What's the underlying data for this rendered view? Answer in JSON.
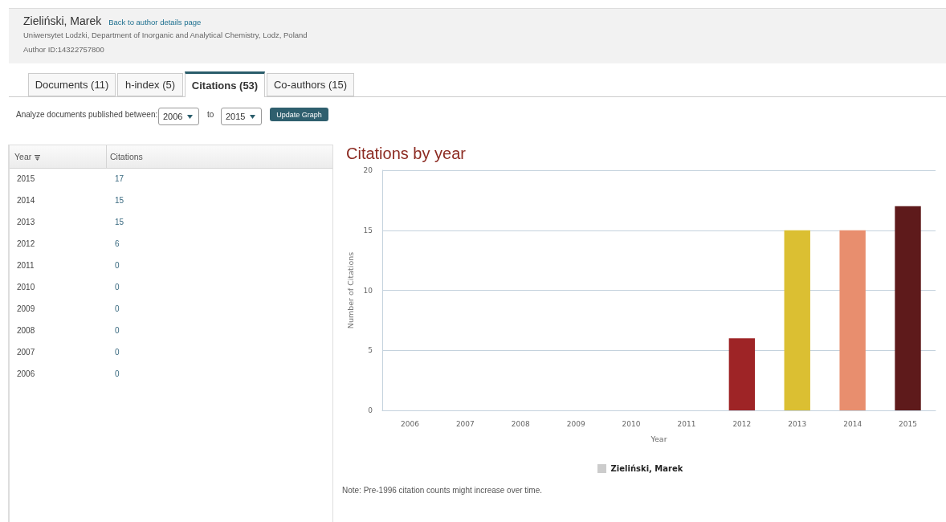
{
  "chart_data": [
    {
      "type": "heatmap",
      "ylabel": "Year",
      "categories": [
        "Citations"
      ],
      "y_categories": [
        "2015",
        "2014",
        "2013",
        "2012",
        "2011",
        "2010",
        "2009",
        "2008",
        "2007",
        "2006"
      ],
      "cells": [
        [
          17
        ],
        [
          15
        ],
        [
          15
        ],
        [
          6
        ],
        [
          0
        ],
        [
          0
        ],
        [
          0
        ],
        [
          0
        ],
        [
          0
        ],
        [
          0
        ]
      ],
      "data_labels": true
    },
    {
      "type": "bar",
      "title": "Citations by year",
      "xlabel": "Year",
      "ylabel": "Number of Citations",
      "categories": [
        "2006",
        "2007",
        "2008",
        "2009",
        "2010",
        "2011",
        "2012",
        "2013",
        "2014",
        "2015"
      ],
      "series": [
        {
          "name": "Zieliński, Marek",
          "values": [
            0,
            0,
            0,
            0,
            0,
            0,
            6,
            15,
            15,
            17
          ]
        }
      ],
      "colors": [
        "#e88e6e",
        "#5e1a1b",
        "#9e2426",
        "#dbbf32",
        "#e88e6e",
        "#5e1a1b",
        "#9e2426",
        "#dbbf32",
        "#e88e6e",
        "#5e1a1b"
      ],
      "ylim": [
        0,
        20
      ],
      "yticks": [
        0,
        5,
        10,
        15,
        20
      ],
      "grid": "y",
      "legend": "bottom",
      "annotations": [
        "Zieliński, Marek",
        "Back to author details page",
        "Uniwersytet Lodzki, Department of Inorganic and Analytical Chemistry, Lodz, Poland",
        "Author ID:14322757800",
        "Documents (11)",
        "h-index (5)",
        "Citations (53)",
        "Co-authors (15)",
        "Analyze documents published between:",
        "2006",
        "to",
        "2015",
        "Update Graph",
        "Note: Pre-1996 citation counts might increase over time."
      ]
    }
  ]
}
